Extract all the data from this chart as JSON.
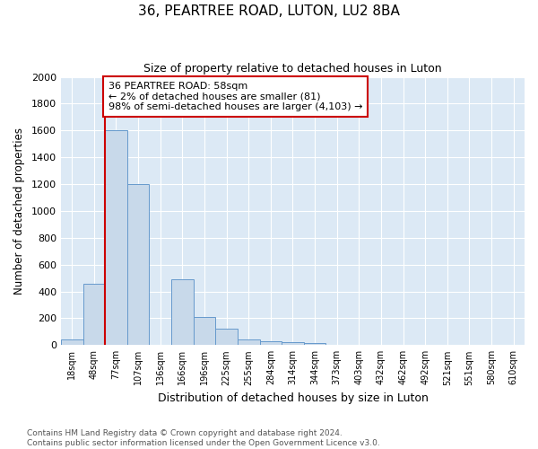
{
  "title": "36, PEARTREE ROAD, LUTON, LU2 8BA",
  "subtitle": "Size of property relative to detached houses in Luton",
  "xlabel": "Distribution of detached houses by size in Luton",
  "ylabel": "Number of detached properties",
  "bin_labels": [
    "18sqm",
    "48sqm",
    "77sqm",
    "107sqm",
    "136sqm",
    "166sqm",
    "196sqm",
    "225sqm",
    "255sqm",
    "284sqm",
    "314sqm",
    "344sqm",
    "373sqm",
    "403sqm",
    "432sqm",
    "462sqm",
    "492sqm",
    "521sqm",
    "551sqm",
    "580sqm",
    "610sqm"
  ],
  "bar_values": [
    40,
    460,
    1600,
    1200,
    0,
    490,
    210,
    120,
    45,
    30,
    20,
    15,
    0,
    0,
    0,
    0,
    0,
    0,
    0,
    0,
    0
  ],
  "bar_color": "#c8d9ea",
  "bar_edge_color": "#6699cc",
  "property_line_x": 1.5,
  "property_line_color": "#cc0000",
  "annotation_text": "36 PEARTREE ROAD: 58sqm\n← 2% of detached houses are smaller (81)\n98% of semi-detached houses are larger (4,103) →",
  "annotation_box_facecolor": "#ffffff",
  "annotation_box_edgecolor": "#cc0000",
  "ylim": [
    0,
    2000
  ],
  "yticks": [
    0,
    200,
    400,
    600,
    800,
    1000,
    1200,
    1400,
    1600,
    1800,
    2000
  ],
  "footer": "Contains HM Land Registry data © Crown copyright and database right 2024.\nContains public sector information licensed under the Open Government Licence v3.0.",
  "fig_bg_color": "#ffffff",
  "plot_bg_color": "#dce9f5"
}
